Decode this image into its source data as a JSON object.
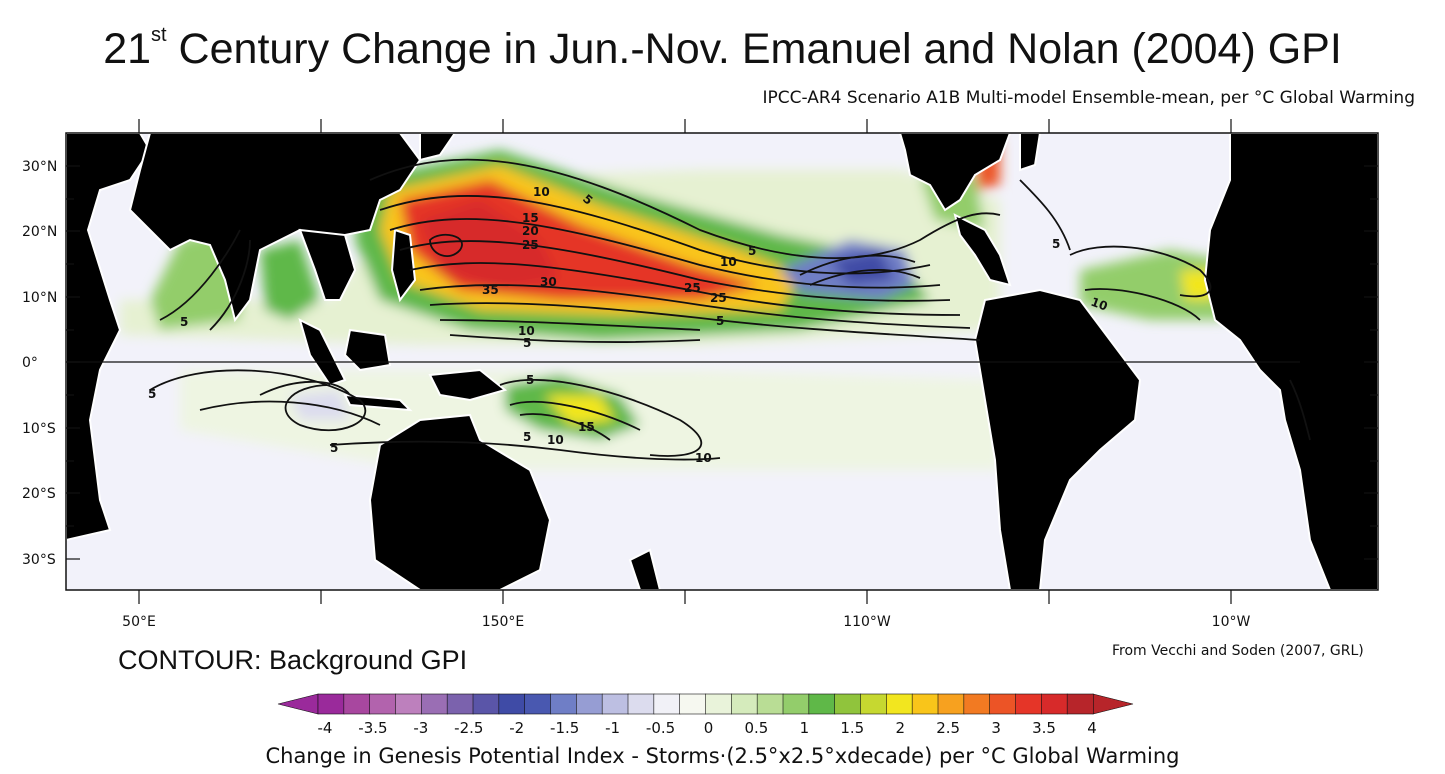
{
  "title": {
    "prefix": "21",
    "superscript": "st",
    "rest": " Century Change in Jun.-Nov. Emanuel and Nolan (2004) GPI"
  },
  "subtitle": "IPCC-AR4 Scenario A1B Multi-model Ensemble-mean, per °C Global Warming",
  "map": {
    "lat_labels": [
      "30°N",
      "20°N",
      "10°N",
      "0°",
      "10°S",
      "20°S",
      "30°S"
    ],
    "lon_labels": [
      "50°E",
      "150°E",
      "110°W",
      "10°W"
    ],
    "contour_labels": [
      "5",
      "10",
      "15",
      "20",
      "25",
      "30",
      "35",
      "25",
      "25",
      "10",
      "10",
      "5",
      "5",
      "5",
      "5",
      "10",
      "5",
      "15",
      "10",
      "5",
      "5",
      "5",
      "5",
      "10"
    ],
    "colors": {
      "land": "#000000",
      "ocean_light": "#f2f2fa",
      "neutral": "#ffffff"
    }
  },
  "contour_note": "CONTOUR: Background GPI",
  "source": "From Vecchi and Soden (2007, GRL)",
  "colorbar": {
    "tick_labels": [
      "-4",
      "-3.5",
      "-3",
      "-2.5",
      "-2",
      "-1.5",
      "-1",
      "-0.5",
      "0",
      "0.5",
      "1",
      "1.5",
      "2",
      "2.5",
      "3",
      "3.5",
      "4"
    ],
    "title": "Change in Genesis Potential Index - Storms·(2.5°x2.5°xdecade) per °C Global Warming",
    "colors": [
      "#9a2a9b",
      "#a8479f",
      "#b263ad",
      "#bd80bd",
      "#9a6eb4",
      "#7b62ad",
      "#5a55a8",
      "#3f4ba6",
      "#4958b0",
      "#6f7ec6",
      "#969dd3",
      "#bdbfe2",
      "#dcdcee",
      "#f1f1f7",
      "#f6f8f0",
      "#e9f3da",
      "#d5ebbc",
      "#b9dd95",
      "#93cd6b",
      "#5fb848",
      "#90c43c",
      "#c6d830",
      "#f2e61f",
      "#f9c51a",
      "#f7a11f",
      "#f27a22",
      "#ec5426",
      "#e53528",
      "#d72a2a",
      "#b7252a"
    ]
  }
}
